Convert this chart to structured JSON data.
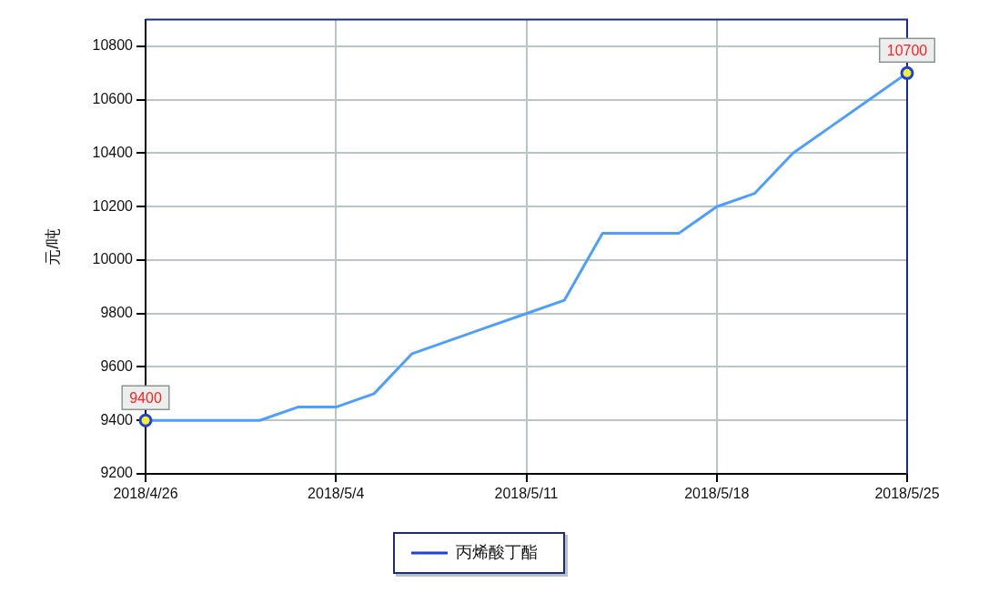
{
  "chart_data": {
    "type": "line",
    "ylabel": "元/吨",
    "categories": [
      "2018/4/26",
      null,
      null,
      null,
      null,
      "2018/5/4",
      null,
      null,
      null,
      null,
      "2018/5/11",
      null,
      null,
      null,
      null,
      "2018/5/18",
      null,
      null,
      null,
      null,
      "2018/5/25"
    ],
    "series": [
      {
        "name": "丙烯酸丁酯",
        "color": "#4d9fff",
        "values": [
          9400,
          9400,
          9400,
          9400,
          9450,
          9450,
          9500,
          9650,
          9700,
          9750,
          9800,
          9850,
          10100,
          10100,
          10100,
          10200,
          10250,
          10400,
          10500,
          10600,
          10700
        ],
        "value_labels": [
          "9400",
          null,
          null,
          null,
          null,
          null,
          null,
          null,
          null,
          null,
          null,
          null,
          null,
          null,
          null,
          null,
          null,
          null,
          null,
          null,
          "10700"
        ]
      }
    ],
    "ylim": [
      9200,
      10900
    ],
    "yticks": [
      9200,
      9400,
      9600,
      9800,
      10000,
      10200,
      10400,
      10600,
      10800
    ],
    "grid": true,
    "legend": "bottom",
    "line_style": "solid"
  }
}
